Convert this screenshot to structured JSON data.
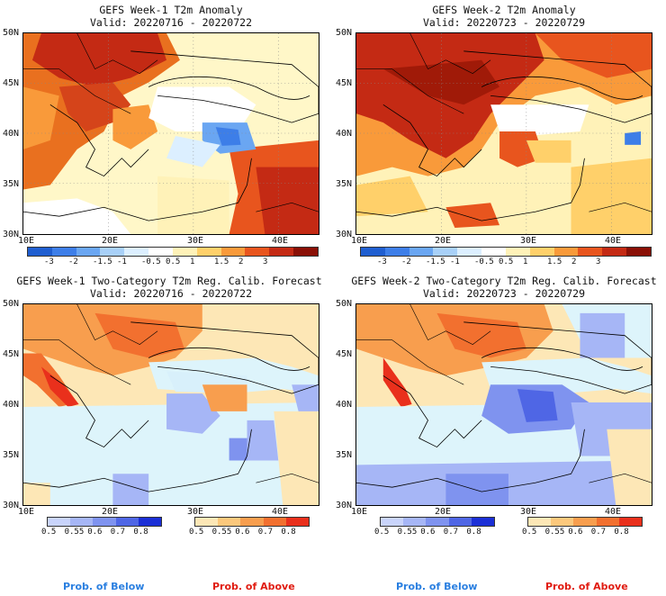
{
  "panels": [
    {
      "title": "GEFS Week-1 T2m Anomaly",
      "valid": "Valid: 20220716 - 20220722"
    },
    {
      "title": "GEFS Week-2 T2m Anomaly",
      "valid": "Valid: 20220723 - 20220729"
    },
    {
      "title": "GEFS Week-1 Two-Category T2m Reg. Calib. Forecast",
      "valid": "Valid: 20220716 - 20220722"
    },
    {
      "title": "GEFS Week-2 Two-Category T2m Reg. Calib. Forecast",
      "valid": "Valid: 20220723 - 20220729"
    }
  ],
  "axes": {
    "lat_labels": [
      "50N",
      "45N",
      "40N",
      "35N",
      "30N"
    ],
    "lon_labels": [
      "10E",
      "20E",
      "30E",
      "40E"
    ]
  },
  "anomaly_colorbar": {
    "ticks": [
      "-3",
      "-2",
      "-1.5",
      "-1",
      "-0.5",
      "0.5",
      "1",
      "1.5",
      "2",
      "3"
    ],
    "colors": [
      "#1f5ed0",
      "#3d7ee8",
      "#6aa6f2",
      "#a8d0f8",
      "#dcefff",
      "#ffffff",
      "#fff2b8",
      "#ffd06a",
      "#f99a3a",
      "#e8551e",
      "#c42a14",
      "#8a1006"
    ]
  },
  "below_colorbar": {
    "ticks": [
      "0.5",
      "0.55",
      "0.6",
      "0.7",
      "0.8"
    ],
    "colors": [
      "#c9d4fb",
      "#a6b6f6",
      "#7f93ef",
      "#4f66e5",
      "#1b2fd6"
    ]
  },
  "above_colorbar": {
    "ticks": [
      "0.5",
      "0.55",
      "0.6",
      "0.7",
      "0.8"
    ],
    "colors": [
      "#fde7b6",
      "#fcc87c",
      "#f89e4e",
      "#f2702f",
      "#e9301c"
    ]
  },
  "legend": {
    "below_label": "Prob. of Below",
    "above_label": "Prob. of Above",
    "below_color": "#2a7fe0",
    "above_color": "#e01b10"
  }
}
